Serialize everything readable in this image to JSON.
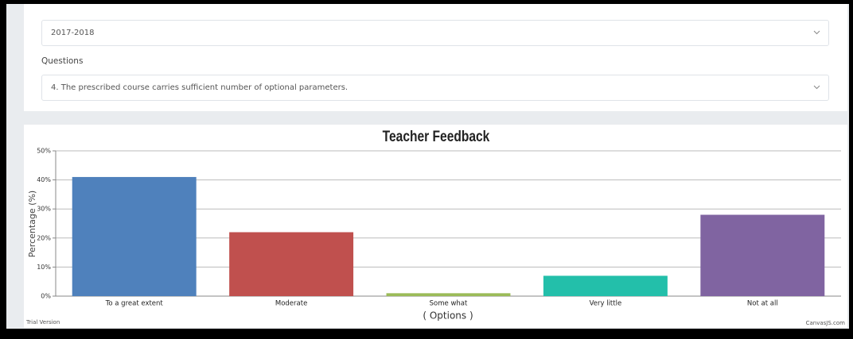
{
  "form": {
    "year": "2017-2018",
    "questions_label": "Questions",
    "question": "4. The prescribed course carries sufficient number of optional parameters."
  },
  "chart_data": {
    "type": "bar",
    "title": "Teacher Feedback",
    "categories": [
      "To a great extent",
      "Moderate",
      "Some what",
      "Very little",
      "Not at all"
    ],
    "values": [
      41,
      22,
      1,
      7,
      28
    ],
    "colors": [
      "#4f81bc",
      "#c0504e",
      "#9bbb58",
      "#23bfaa",
      "#8064a1"
    ],
    "ylabel": "Percentage (%)",
    "xlabel": "( Options )",
    "ylim": [
      0,
      50
    ],
    "yticks": [
      {
        "value": 0,
        "label": "0%"
      },
      {
        "value": 10,
        "label": "10%"
      },
      {
        "value": 20,
        "label": "20%"
      },
      {
        "value": 30,
        "label": "30%"
      },
      {
        "value": 40,
        "label": "40%"
      },
      {
        "value": 50,
        "label": "50%"
      }
    ],
    "grid": true
  },
  "footer": {
    "trial": "Trial Version",
    "credit": "CanvasJS.com"
  }
}
